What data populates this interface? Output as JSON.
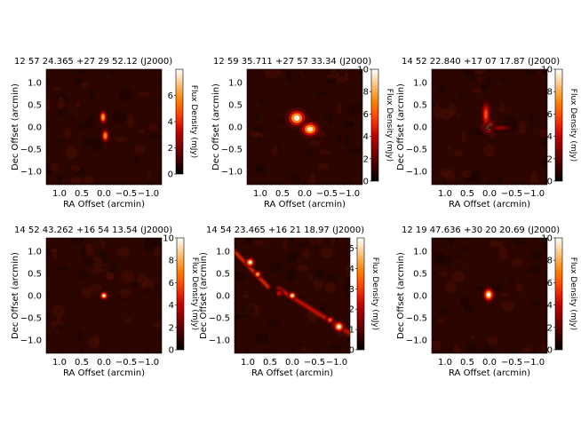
{
  "figure": {
    "axis_labels": {
      "x": "RA Offset (arcmin)",
      "y": "Dec Offset (arcmin)",
      "colorbar": "Flux Density (mJy)"
    },
    "x_tick_labels": [
      "1.0",
      "0.5",
      "0.0",
      "−0.5",
      "−1.0"
    ],
    "y_tick_labels": [
      "1.0",
      "0.5",
      "0.0",
      "−0.5",
      "−1.0"
    ]
  },
  "chart_data": [
    {
      "type": "heatmap",
      "title": "12 57 24.365 +27 29 52.12 (J2000)",
      "xlabel": "RA Offset (arcmin)",
      "ylabel": "Dec Offset (arcmin)",
      "xlim": [
        1.3,
        -1.3
      ],
      "ylim": [
        -1.3,
        1.3
      ],
      "colorbar": {
        "label": "Flux Density (mJy)",
        "range": [
          0,
          8
        ],
        "ticks": [
          0,
          2,
          4,
          6
        ]
      },
      "sources": [
        {
          "x": 0.02,
          "y": 0.22,
          "sx": 0.05,
          "sy": 0.09,
          "peak": 6.5
        },
        {
          "x": -0.03,
          "y": -0.2,
          "sx": 0.05,
          "sy": 0.09,
          "peak": 6.0
        }
      ]
    },
    {
      "type": "heatmap",
      "title": "12 59 35.711 +27 57 33.34 (J2000)",
      "xlabel": "RA Offset (arcmin)",
      "ylabel": "Dec Offset (arcmin)",
      "xlim": [
        1.3,
        -1.3
      ],
      "ylim": [
        -1.3,
        1.3
      ],
      "colorbar": {
        "label": "Flux Density (mJy)",
        "range": [
          0,
          10
        ],
        "ticks": [
          0,
          2,
          4,
          6,
          8,
          10
        ]
      },
      "sources": [
        {
          "x": 0.18,
          "y": 0.2,
          "sx": 0.12,
          "sy": 0.11,
          "peak": 10
        },
        {
          "x": -0.12,
          "y": -0.05,
          "sx": 0.12,
          "sy": 0.1,
          "peak": 9.5
        }
      ]
    },
    {
      "type": "heatmap",
      "title": "14 52 22.840 +17 07 17.87 (J2000)",
      "xlabel": "RA Offset (arcmin)",
      "ylabel": "Dec Offset (arcmin)",
      "xlim": [
        1.3,
        -1.3
      ],
      "ylim": [
        -1.3,
        1.3
      ],
      "colorbar": {
        "label": "Flux Density (mJy)",
        "range": [
          0,
          10
        ],
        "ticks": [
          0,
          2,
          4,
          6,
          8,
          10
        ]
      },
      "sources": [
        {
          "x": 0.02,
          "y": 0.0,
          "sx": 0.09,
          "sy": 0.08,
          "peak": 10
        },
        {
          "x": 0.08,
          "y": 0.28,
          "sx": 0.06,
          "sy": 0.18,
          "peak": 6
        },
        {
          "x": -0.25,
          "y": -0.02,
          "sx": 0.18,
          "sy": 0.05,
          "peak": 3
        }
      ]
    },
    {
      "type": "heatmap",
      "title": "14 52 43.262 +16 54 13.54 (J2000)",
      "xlabel": "RA Offset (arcmin)",
      "ylabel": "Dec Offset (arcmin)",
      "xlim": [
        1.3,
        -1.3
      ],
      "ylim": [
        -1.3,
        1.3
      ],
      "colorbar": {
        "label": "Flux Density (mJy)",
        "range": [
          0,
          10
        ],
        "ticks": [
          0,
          2,
          4,
          6,
          8,
          10
        ]
      },
      "sources": [
        {
          "x": 0.0,
          "y": 0.0,
          "sx": 0.05,
          "sy": 0.05,
          "peak": 10
        }
      ]
    },
    {
      "type": "heatmap",
      "title": "14 54 23.465 +16 21 18.97 (J2000)",
      "xlabel": "RA Offset (arcmin)",
      "ylabel": "Dec Offset (arcmin)",
      "xlim": [
        1.3,
        -1.3
      ],
      "ylim": [
        -1.3,
        1.3
      ],
      "colorbar": {
        "label": "Flux Density (mJy)",
        "range": [
          0,
          5.5
        ],
        "ticks": [
          0,
          1,
          2,
          3,
          4,
          5
        ]
      },
      "sources": [
        {
          "x": 0.0,
          "y": 0.0,
          "sx": 0.05,
          "sy": 0.05,
          "peak": 5.5
        },
        {
          "x": 0.95,
          "y": 0.75,
          "sx": 0.06,
          "sy": 0.06,
          "peak": 5.5
        },
        {
          "x": 0.78,
          "y": 0.48,
          "sx": 0.05,
          "sy": 0.05,
          "peak": 4.5
        },
        {
          "x": -1.05,
          "y": -0.7,
          "sx": 0.07,
          "sy": 0.07,
          "peak": 5.5
        },
        {
          "x": -0.85,
          "y": -0.55,
          "sx": 0.05,
          "sy": 0.05,
          "peak": 3.5
        },
        {
          "x": 0.3,
          "y": 0.05,
          "sx": 0.05,
          "sy": 0.05,
          "peak": 2.5
        }
      ],
      "filaments": [
        {
          "from": [
            1.3,
            1.0
          ],
          "to": [
            0.55,
            0.2
          ],
          "width": 0.06,
          "level": 2.8
        },
        {
          "from": [
            0.3,
            0.15
          ],
          "to": [
            -1.3,
            -0.85
          ],
          "width": 0.07,
          "level": 2.5
        }
      ]
    },
    {
      "type": "heatmap",
      "title": "12 19 47.636 +30 20 20.69 (J2000)",
      "xlabel": "RA Offset (arcmin)",
      "ylabel": "Dec Offset (arcmin)",
      "xlim": [
        1.3,
        -1.3
      ],
      "ylim": [
        -1.3,
        1.3
      ],
      "colorbar": {
        "label": "Flux Density (mJy)",
        "range": [
          0,
          10
        ],
        "ticks": [
          0,
          2,
          4,
          6,
          8,
          10
        ]
      },
      "sources": [
        {
          "x": 0.02,
          "y": 0.02,
          "sx": 0.07,
          "sy": 0.09,
          "peak": 10
        }
      ]
    }
  ]
}
